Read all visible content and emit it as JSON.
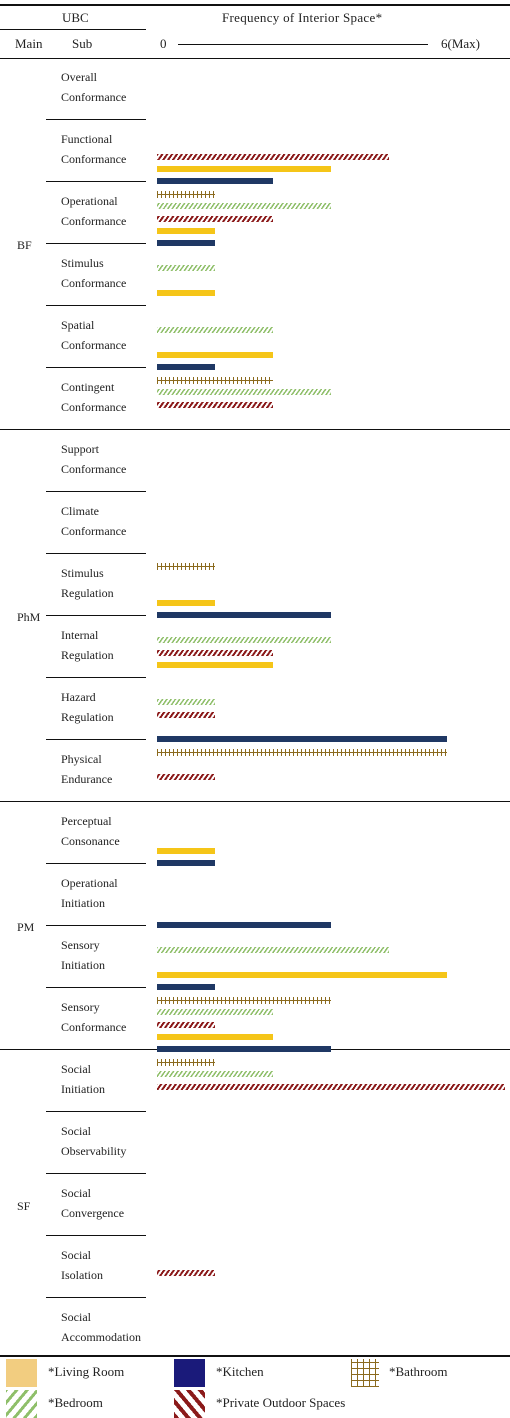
{
  "header": {
    "ubc": "UBC",
    "main": "Main",
    "sub": "Sub",
    "freq_title": "Frequency of Interior Space*",
    "axis_min": "0",
    "axis_max": "6(Max)"
  },
  "groups": [
    {
      "id": "BF",
      "label": "BF",
      "subs": [
        {
          "l1": "Overall",
          "l2": "Conformance"
        },
        {
          "l1": "Functional",
          "l2": "Conformance"
        },
        {
          "l1": "Operational",
          "l2": "Conformance"
        },
        {
          "l1": "Stimulus",
          "l2": "Conformance"
        },
        {
          "l1": "Spatial",
          "l2": "Conformance"
        },
        {
          "l1": "Contingent",
          "l2": "Conformance"
        }
      ]
    },
    {
      "id": "PhM",
      "label": "PhM",
      "subs": [
        {
          "l1": "Support",
          "l2": "Conformance"
        },
        {
          "l1": "Climate",
          "l2": "Conformance"
        },
        {
          "l1": "Stimulus",
          "l2": "Regulation"
        },
        {
          "l1": "Internal",
          "l2": "Regulation"
        },
        {
          "l1": "Hazard",
          "l2": "Regulation"
        },
        {
          "l1": "Physical",
          "l2": "Endurance"
        }
      ]
    },
    {
      "id": "PM",
      "label": "PM",
      "subs": [
        {
          "l1": "Perceptual",
          "l2": "Consonance"
        },
        {
          "l1": "Operational",
          "l2": "Initiation"
        },
        {
          "l1": "Sensory",
          "l2": "Initiation"
        },
        {
          "l1": "Sensory",
          "l2": "Conformance"
        }
      ]
    },
    {
      "id": "SF",
      "label": "SF",
      "subs": [
        {
          "l1": "Social",
          "l2": "Initiation"
        },
        {
          "l1": "Social",
          "l2": "Observability"
        },
        {
          "l1": "Social",
          "l2": "Convergence"
        },
        {
          "l1": "Social",
          "l2": "Isolation"
        },
        {
          "l1": "Social",
          "l2": "Accommodation"
        }
      ]
    }
  ],
  "legend": [
    {
      "key": "living",
      "label": "*Living Room"
    },
    {
      "key": "kitchen",
      "label": "*Kitchen"
    },
    {
      "key": "bathroom",
      "label": "*Bathroom"
    },
    {
      "key": "bedroom",
      "label": "*Bedroom"
    },
    {
      "key": "outdoor",
      "label": "*Private Outdoor Spaces"
    }
  ],
  "colors": {
    "living": "#f5c518",
    "living_legend": "#f2cd80",
    "kitchen": "#1f3864",
    "kitchen_legend": "#1a1a7a",
    "bathroom": "#8b6a1e",
    "bedroom": "#8fbf6a",
    "outdoor": "#8b1a1a"
  },
  "chart_data": {
    "type": "bar",
    "title": "Frequency of Interior Space*",
    "xlim": [
      0,
      6
    ],
    "series": [
      {
        "key": "living",
        "name": "*Living Room"
      },
      {
        "key": "kitchen",
        "name": "*Kitchen"
      },
      {
        "key": "bathroom",
        "name": "*Bathroom"
      },
      {
        "key": "bedroom",
        "name": "*Bedroom"
      },
      {
        "key": "outdoor",
        "name": "*Private Outdoor Spaces"
      }
    ],
    "rows": [
      {
        "category": "Overall Conformance",
        "values": {
          "outdoor": 4.0
        }
      },
      {
        "category": "Functional Conformance",
        "values": {
          "living": 3.0,
          "kitchen": 2.0,
          "bathroom": 1.0,
          "bedroom": 3.0,
          "outdoor": 2.0
        }
      },
      {
        "category": "Operational Conformance",
        "values": {
          "living": 1.0,
          "kitchen": 1.0,
          "bedroom": 1.0
        }
      },
      {
        "category": "Stimulus Conformance",
        "values": {
          "living": 1.0,
          "bedroom": 2.0
        }
      },
      {
        "category": "Spatial Conformance",
        "values": {
          "living": 2.0,
          "kitchen": 1.0,
          "bathroom": 2.0,
          "bedroom": 3.0,
          "outdoor": 2.0
        }
      },
      {
        "category": "Contingent Conformance",
        "values": {}
      },
      {
        "category": "Support Conformance",
        "values": {}
      },
      {
        "category": "Climate Conformance",
        "values": {
          "bathroom": 1.0
        }
      },
      {
        "category": "Stimulus Regulation",
        "values": {
          "living": 1.0,
          "kitchen": 3.0,
          "bedroom": 3.0,
          "outdoor": 2.0
        }
      },
      {
        "category": "Internal Regulation",
        "values": {
          "living": 2.0,
          "bedroom": 1.0,
          "outdoor": 1.0
        }
      },
      {
        "category": "Hazard Regulation",
        "values": {
          "kitchen": 5.0,
          "bathroom": 5.0,
          "outdoor": 1.0
        }
      },
      {
        "category": "Physical Endurance",
        "values": {}
      },
      {
        "category": "Perceptual Consonance",
        "values": {
          "living": 1.0,
          "kitchen": 1.0
        }
      },
      {
        "category": "Operational Initiation",
        "values": {
          "kitchen": 3.0,
          "bedroom": 4.0
        }
      },
      {
        "category": "Sensory Initiation",
        "values": {
          "living": 5.0,
          "kitchen": 1.0,
          "bathroom": 3.0,
          "bedroom": 2.0,
          "outdoor": 1.0
        }
      },
      {
        "category": "Sensory Conformance",
        "values": {
          "living": 2.0,
          "kitchen": 3.0,
          "bathroom": 1.0,
          "bedroom": 2.0,
          "outdoor": 6.0
        }
      },
      {
        "category": "Social Initiation",
        "values": {}
      },
      {
        "category": "Social Observability",
        "values": {}
      },
      {
        "category": "Social Convergence",
        "values": {
          "outdoor": 1.0
        }
      },
      {
        "category": "Social Isolation",
        "values": {}
      },
      {
        "category": "Social Accommodation",
        "values": {}
      }
    ]
  }
}
